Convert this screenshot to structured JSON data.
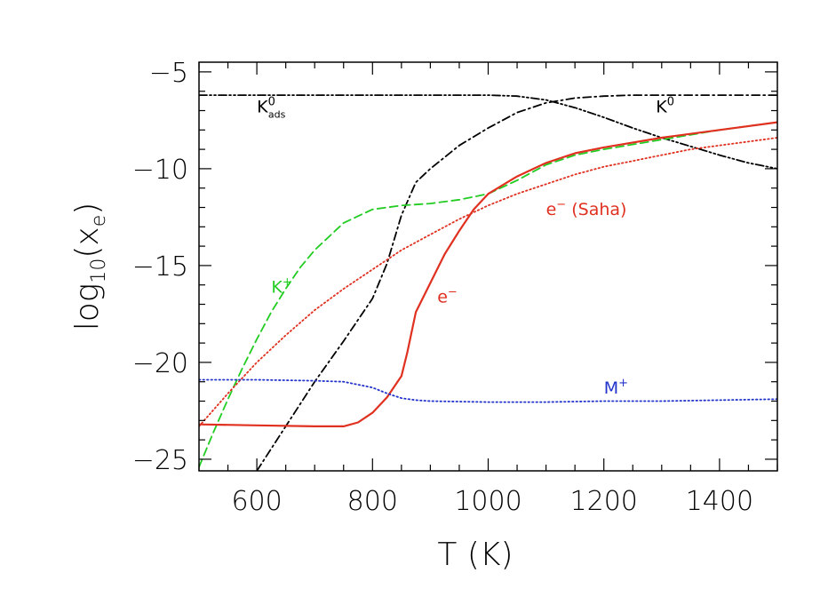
{
  "chart_data": {
    "type": "line",
    "xlabel": "T (K)",
    "ylabel_base": "log",
    "ylabel_sub": "10",
    "ylabel_arg": "x",
    "ylabel_arg_sub": "e",
    "xlim": [
      500,
      1500
    ],
    "ylim": [
      -25.6,
      -4.5
    ],
    "x_ticks": [
      600,
      800,
      1000,
      1200,
      1400
    ],
    "y_ticks": [
      -5,
      -10,
      -15,
      -20,
      -25
    ],
    "x_tick_labels": [
      "600",
      "800",
      "1000",
      "1200",
      "1400"
    ],
    "y_tick_labels": [
      "−5",
      "−10",
      "−15",
      "−20",
      "−25"
    ],
    "grid": false,
    "series": [
      {
        "name": "K0ads",
        "color": "#000000",
        "style": "dash-dot-dot",
        "x": [
          500,
          600,
          800,
          1000,
          1050,
          1100,
          1150,
          1200,
          1250,
          1300,
          1350,
          1400,
          1450,
          1500
        ],
        "y": [
          -6.2,
          -6.2,
          -6.2,
          -6.2,
          -6.25,
          -6.45,
          -6.85,
          -7.35,
          -7.9,
          -8.4,
          -8.85,
          -9.3,
          -9.7,
          -10.0
        ]
      },
      {
        "name": "K0",
        "color": "#000000",
        "style": "dash-dot",
        "x": [
          600,
          650,
          700,
          750,
          800,
          825,
          850,
          875,
          900,
          950,
          1000,
          1050,
          1100,
          1150,
          1200,
          1250,
          1300,
          1400,
          1500
        ],
        "y": [
          -25.6,
          -23.3,
          -21.0,
          -18.9,
          -16.7,
          -14.9,
          -12.4,
          -10.7,
          -10.0,
          -8.8,
          -7.9,
          -7.1,
          -6.6,
          -6.35,
          -6.25,
          -6.2,
          -6.2,
          -6.2,
          -6.2
        ]
      },
      {
        "name": "K+",
        "color": "#22cc22",
        "style": "dashed",
        "x": [
          500,
          525,
          550,
          575,
          600,
          625,
          650,
          675,
          700,
          750,
          800,
          850,
          900,
          950,
          1000,
          1050,
          1100,
          1150,
          1200,
          1300,
          1400,
          1500
        ],
        "y": [
          -25.4,
          -23.6,
          -21.9,
          -20.3,
          -18.8,
          -17.4,
          -16.2,
          -15.1,
          -14.2,
          -12.8,
          -12.1,
          -11.9,
          -11.8,
          -11.6,
          -11.3,
          -10.6,
          -9.8,
          -9.3,
          -9.0,
          -8.5,
          -8.0,
          -7.6
        ]
      },
      {
        "name": "e- (Saha)",
        "color": "#e03020",
        "style": "dotted",
        "x": [
          500,
          550,
          600,
          650,
          700,
          750,
          800,
          850,
          900,
          950,
          1000,
          1050,
          1100,
          1150,
          1200,
          1250,
          1300,
          1350,
          1400,
          1450,
          1500
        ],
        "y": [
          -23.3,
          -21.6,
          -20.0,
          -18.6,
          -17.3,
          -16.2,
          -15.2,
          -14.2,
          -13.4,
          -12.6,
          -11.9,
          -11.3,
          -10.8,
          -10.3,
          -9.9,
          -9.6,
          -9.3,
          -9.0,
          -8.8,
          -8.6,
          -8.4
        ]
      },
      {
        "name": "e-",
        "color": "#e03020",
        "style": "solid",
        "x": [
          500,
          600,
          700,
          750,
          775,
          800,
          825,
          850,
          860,
          875,
          900,
          925,
          950,
          975,
          1000,
          1050,
          1100,
          1150,
          1200,
          1300,
          1400,
          1500
        ],
        "y": [
          -23.2,
          -23.25,
          -23.3,
          -23.3,
          -23.1,
          -22.6,
          -21.8,
          -20.7,
          -19.5,
          -17.4,
          -15.9,
          -14.4,
          -13.2,
          -12.1,
          -11.3,
          -10.4,
          -9.7,
          -9.2,
          -8.9,
          -8.4,
          -8.0,
          -7.6
        ]
      },
      {
        "name": "M+",
        "color": "#2233cc",
        "style": "dotted",
        "x": [
          500,
          600,
          700,
          750,
          800,
          825,
          850,
          875,
          900,
          1000,
          1100,
          1200,
          1300,
          1400,
          1500
        ],
        "y": [
          -20.9,
          -20.9,
          -20.95,
          -21.0,
          -21.3,
          -21.6,
          -21.85,
          -21.95,
          -22.0,
          -22.05,
          -22.05,
          -22.0,
          -22.0,
          -21.95,
          -21.9
        ]
      }
    ],
    "annotations": [
      {
        "id": "k0ads",
        "base": "K",
        "sup": "0",
        "sub": "ads",
        "color": "#000000",
        "x": 600,
        "y": -7.1
      },
      {
        "id": "k0",
        "base": "K",
        "sup": "0",
        "sub": "",
        "color": "#000000",
        "x": 1290,
        "y": -7.1
      },
      {
        "id": "kplus",
        "base": "K",
        "sup": "+",
        "sub": "",
        "color": "#22cc22",
        "x": 625,
        "y": -16.4
      },
      {
        "id": "eminus",
        "base": "e",
        "sup": "−",
        "sub": "",
        "color": "#e03020",
        "x": 912,
        "y": -16.9
      },
      {
        "id": "esaha",
        "base": "e",
        "sup": "−",
        "sub": "",
        "tail": " (Saha)",
        "color": "#e03020",
        "x": 1100,
        "y": -12.4
      },
      {
        "id": "mplus",
        "base": "M",
        "sup": "+",
        "sub": "",
        "color": "#2233cc",
        "x": 1200,
        "y": -21.6
      }
    ]
  }
}
